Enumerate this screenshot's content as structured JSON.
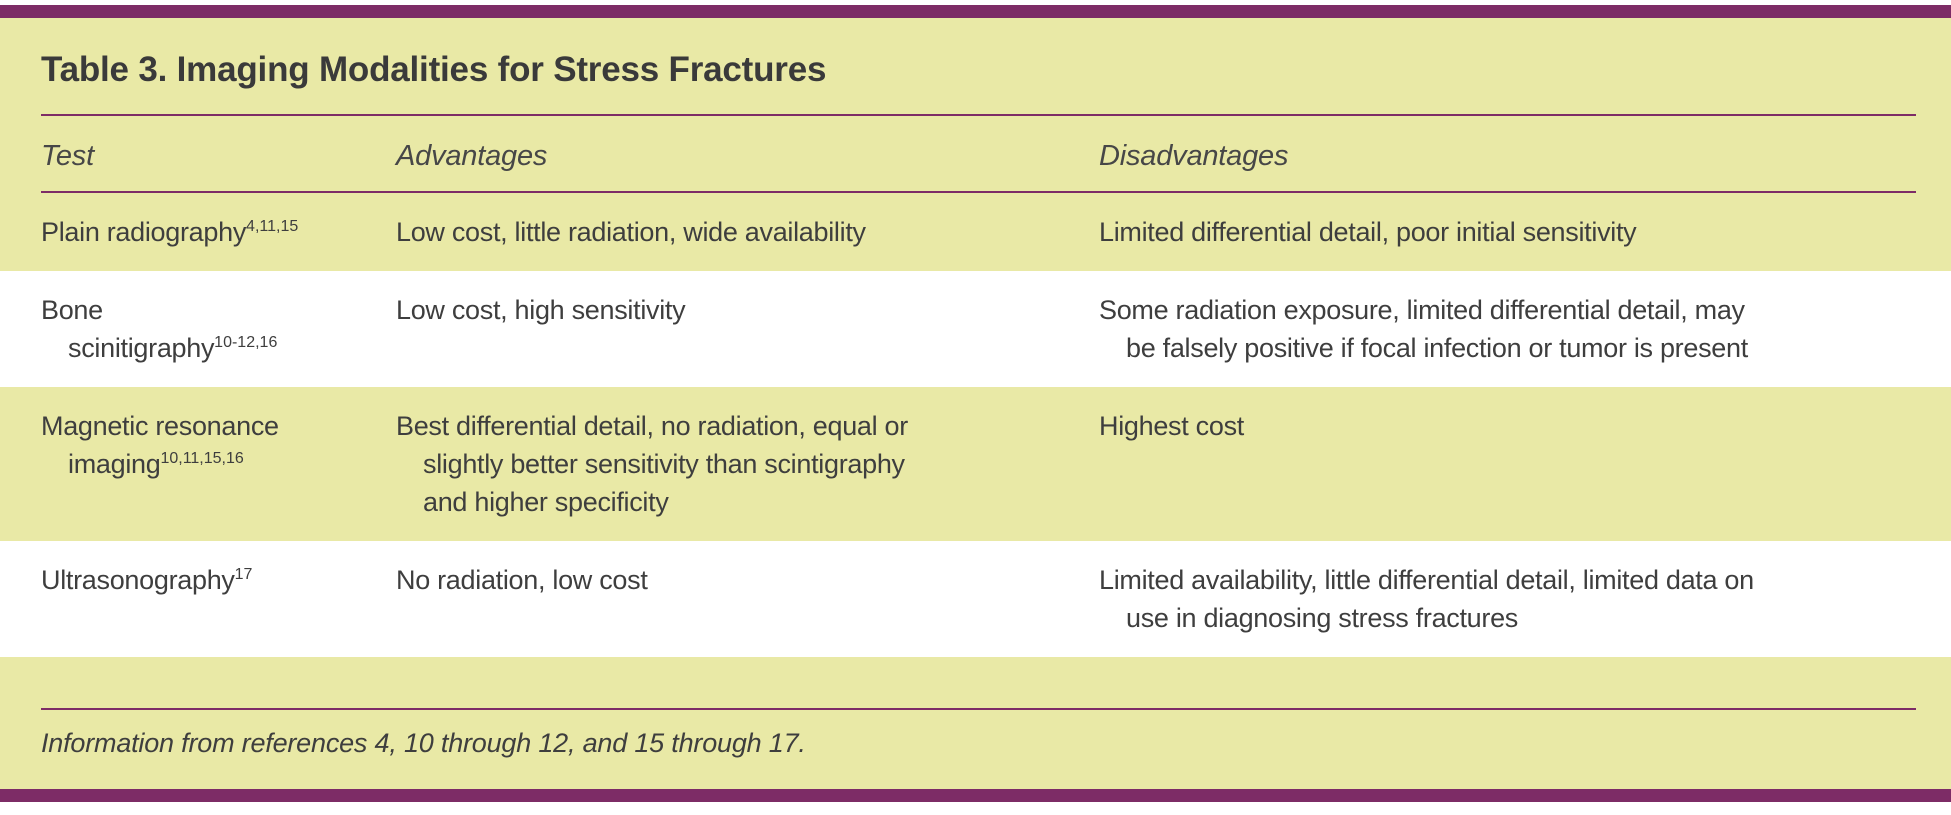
{
  "title": "Table 3. Imaging Modalities for Stress Fractures",
  "header": {
    "test": "Test",
    "advantages": "Advantages",
    "disadvantages": "Disadvantages"
  },
  "rows": [
    {
      "test": "Plain radiography",
      "sup": "4,11,15",
      "advantages": "Low cost, little radiation, wide availability",
      "disadvantages": "Limited differential detail, poor initial sensitivity"
    },
    {
      "test": "Bone\nscinitigraphy",
      "sup": "10-12,16",
      "advantages": "Low cost, high sensitivity",
      "disadvantages": "Some radiation exposure, limited differential detail, may\nbe falsely positive if focal infection or tumor is present"
    },
    {
      "test": "Magnetic resonance\nimaging",
      "sup": "10,11,15,16",
      "advantages": "Best differential detail, no radiation, equal or\nslightly better sensitivity than scintigraphy\nand higher specificity",
      "disadvantages": "Highest cost"
    },
    {
      "test": "Ultrasonography",
      "sup": "17",
      "advantages": "No radiation, low cost",
      "disadvantages": "Limited availability, little differential detail, limited data on\nuse in diagnosing stress fractures"
    }
  ],
  "footnote": "Information from references 4, 10 through 12, and 15 through 17.",
  "colors": {
    "accent_purple": "#7d2c66",
    "background_yellow": "#e9e9a6",
    "row_alt_white": "#ffffff",
    "text": "#3e3e3e"
  }
}
